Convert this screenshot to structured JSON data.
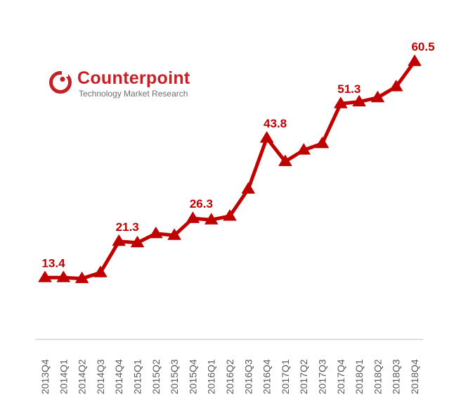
{
  "logo": {
    "brand": "Counterpoint",
    "tagline": "Technology Market Research"
  },
  "colors": {
    "series": "#c00000",
    "axis": "#bfbfbf",
    "tick_text": "#595959",
    "logo_red": "#c62026"
  },
  "chart_data": {
    "type": "line",
    "title": "",
    "xlabel": "",
    "ylabel": "",
    "marker": "triangle",
    "ylim": [
      0,
      80
    ],
    "grid": false,
    "legend": "none",
    "categories": [
      "2013Q4",
      "2014Q1",
      "2014Q2",
      "2014Q3",
      "2014Q4",
      "2015Q1",
      "2015Q2",
      "2015Q3",
      "2015Q4",
      "2016Q1",
      "2016Q2",
      "2016Q3",
      "2016Q4",
      "2017Q1",
      "2017Q2",
      "2017Q3",
      "2017Q4",
      "2018Q1",
      "2018Q2",
      "2018Q3",
      "2018Q4"
    ],
    "series": [
      {
        "values": [
          13.4,
          13.4,
          13.2,
          14.5,
          21.3,
          21.0,
          23.0,
          22.6,
          26.3,
          26.0,
          26.8,
          32.7,
          43.8,
          38.7,
          41.2,
          42.6,
          51.3,
          51.7,
          52.6,
          55.0,
          60.5
        ]
      }
    ],
    "data_labels": [
      {
        "index": 0,
        "text": "13.4"
      },
      {
        "index": 4,
        "text": "21.3"
      },
      {
        "index": 8,
        "text": "26.3"
      },
      {
        "index": 12,
        "text": "43.8"
      },
      {
        "index": 16,
        "text": "51.3"
      },
      {
        "index": 20,
        "text": "60.5"
      }
    ]
  }
}
